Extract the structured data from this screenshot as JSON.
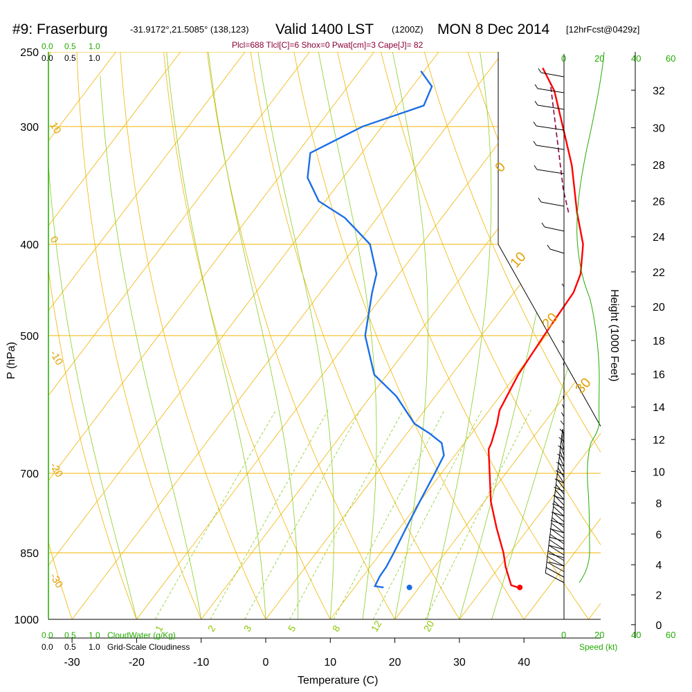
{
  "header": {
    "station": "#9: Fraserburg",
    "coords": "-31.9172°,21.5085° (138,123)",
    "valid": "Valid 1400 LST",
    "zulu": "(1200Z)",
    "date": "MON 8 Dec 2014",
    "fcst": "[12hrFcst@0429z]",
    "indices": "Plcl=688 Tlcl[C]=6 Shox=0 Pwat[cm]=3 Cape[J]= 82"
  },
  "scales": {
    "cloudwater_ticks": [
      "0.0",
      "0.5",
      "1.0"
    ],
    "cloudiness_ticks": [
      "0.0",
      "0.5",
      "1.0"
    ],
    "cloudwater_label": "CloudWater (g/Kg)",
    "cloudiness_label": "Grid-Scale Cloudiness",
    "speed_black_ticks": [
      "0",
      "20"
    ],
    "speed_green_ticks": [
      "20",
      "40",
      "60"
    ],
    "speed_label": "Speed (kt)"
  },
  "chart_data": {
    "type": "line",
    "title": "#9: Fraserburg  Valid 1400 LST (1200Z) MON 8 Dec 2014 [12hrFcst@0429z]",
    "xlabel": "Temperature (C)",
    "ylabel": "P (hPa)",
    "y2label": "Height (1000 Feet)",
    "x_ticks": [
      -30,
      -20,
      -10,
      0,
      10,
      20,
      30,
      40
    ],
    "xlim": [
      -35,
      45
    ],
    "ylim": [
      1000,
      250
    ],
    "y_scale": "log-pressure",
    "pressure_levels": [
      250,
      300,
      400,
      500,
      700,
      850,
      1000
    ],
    "height_ticks": [
      0,
      2,
      4,
      6,
      8,
      10,
      12,
      14,
      16,
      18,
      20,
      22,
      24,
      26,
      28,
      30,
      32
    ],
    "dry_adiabat_labels": [
      "10",
      "0",
      "-10",
      "-20",
      "-30",
      "0",
      "10",
      "20",
      "30"
    ],
    "mixing_ratio_labels": [
      "1",
      "2",
      "3",
      "5",
      "8",
      "12",
      "20"
    ],
    "colors": {
      "temperature": "#ff0000",
      "dewpoint": "#1a6ee6",
      "parcel": "#880044",
      "isotherm": "#f0b400",
      "isobar": "#f0b400",
      "dry_adiabat": "#f0b400",
      "moist_adiabat": "#88cc22",
      "mixing_ratio": "#88cc22",
      "wind_speed": "#22aa00",
      "cloud": "#22aa00"
    },
    "series": [
      {
        "name": "Temperature",
        "kind": "temperature",
        "points": [
          [
            35.3,
            925
          ],
          [
            34,
            920
          ],
          [
            31,
            880
          ],
          [
            29,
            850
          ],
          [
            25,
            800
          ],
          [
            21,
            750
          ],
          [
            17.5,
            700
          ],
          [
            14.5,
            660
          ],
          [
            14.2,
            650
          ],
          [
            12.8,
            620
          ],
          [
            11.6,
            600
          ],
          [
            10.3,
            550
          ],
          [
            9.7,
            500
          ],
          [
            9.2,
            450
          ],
          [
            8.1,
            430
          ],
          [
            5,
            400
          ],
          [
            0.3,
            370
          ],
          [
            -6,
            330
          ],
          [
            -12,
            300
          ],
          [
            -17.5,
            275
          ],
          [
            -22,
            260
          ]
        ]
      },
      {
        "name": "Dewpoint",
        "kind": "dewpoint",
        "points": [
          [
            14.5,
            925
          ],
          [
            13,
            922
          ],
          [
            12.6,
            900
          ],
          [
            12.5,
            880
          ],
          [
            12,
            850
          ],
          [
            11,
            800
          ],
          [
            10,
            750
          ],
          [
            9,
            700
          ],
          [
            8.3,
            670
          ],
          [
            6.5,
            650
          ],
          [
            3.5,
            635
          ],
          [
            0,
            620
          ],
          [
            -6,
            580
          ],
          [
            -12,
            550
          ],
          [
            -18,
            500
          ],
          [
            -22,
            450
          ],
          [
            -23.5,
            430
          ],
          [
            -28,
            400
          ],
          [
            -35,
            375
          ],
          [
            -41,
            360
          ],
          [
            -45.5,
            340
          ],
          [
            -48,
            320
          ],
          [
            -43,
            300
          ],
          [
            -36,
            285
          ],
          [
            -37,
            272
          ],
          [
            -40.5,
            262
          ]
        ]
      },
      {
        "name": "Parcel",
        "kind": "parcel",
        "points": [
          [
            -1,
            370
          ],
          [
            -4.5,
            350
          ],
          [
            -9.5,
            320
          ],
          [
            -15,
            290
          ],
          [
            -19,
            270
          ]
        ]
      }
    ],
    "surface_markers": {
      "temperature": [
        35.6,
        925
      ],
      "dewpoint": [
        18.5,
        925
      ]
    }
  }
}
